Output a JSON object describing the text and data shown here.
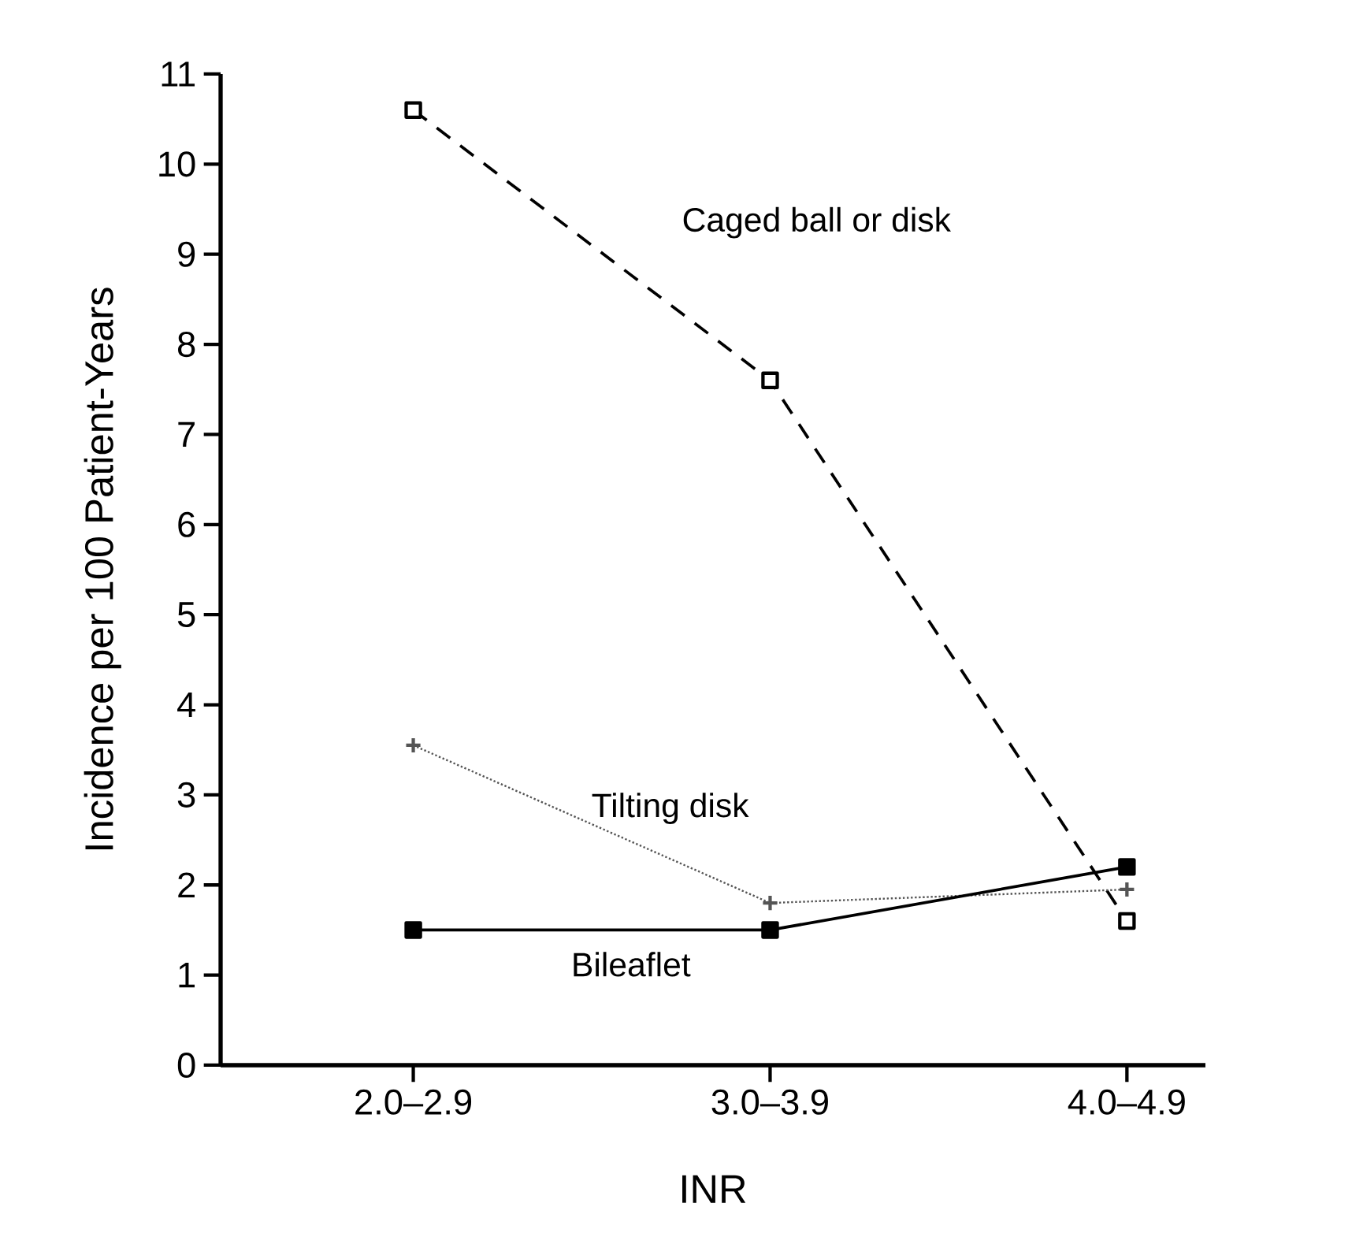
{
  "chart_data": {
    "type": "line",
    "xlabel": "INR",
    "ylabel": "Incidence per 100 Patient-Years",
    "categories": [
      "2.0–2.9",
      "3.0–3.9",
      "4.0–4.9"
    ],
    "ylim": [
      0,
      11
    ],
    "yticks": [
      0,
      1,
      2,
      3,
      4,
      5,
      6,
      7,
      8,
      9,
      10,
      11
    ],
    "grid": false,
    "series": [
      {
        "name": "Caged ball or disk",
        "color": "#000000",
        "values": [
          10.6,
          7.6,
          1.6
        ],
        "marker": "square",
        "line_style": "dashed"
      },
      {
        "name": "Tilting disk",
        "color": "#555555",
        "values": [
          3.55,
          1.8,
          1.95
        ],
        "marker": "cross",
        "line_style": "dotted"
      },
      {
        "name": "Bileaflet",
        "color": "#000000",
        "values": [
          1.5,
          1.5,
          2.2
        ],
        "marker": "square",
        "line_style": "solid"
      }
    ]
  }
}
